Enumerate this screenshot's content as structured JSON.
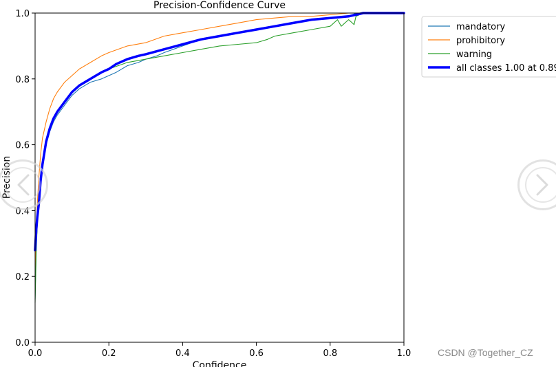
{
  "chart_data": {
    "type": "line",
    "title": "Precision-Confidence Curve",
    "xlabel": "Confidence",
    "ylabel": "Precision",
    "xlim": [
      0.0,
      1.0
    ],
    "ylim": [
      0.0,
      1.0
    ],
    "xticks": [
      "0.0",
      "0.2",
      "0.4",
      "0.6",
      "0.8",
      "1.0"
    ],
    "yticks": [
      "0.0",
      "0.2",
      "0.4",
      "0.6",
      "0.8",
      "1.0"
    ],
    "grid": false,
    "legend_position": "outside-right-top",
    "series": [
      {
        "name": "mandatory",
        "color": "#1f77b4",
        "line_width": "thin",
        "x": [
          0.0,
          0.003,
          0.006,
          0.01,
          0.015,
          0.02,
          0.03,
          0.04,
          0.05,
          0.06,
          0.08,
          0.1,
          0.12,
          0.15,
          0.18,
          0.2,
          0.22,
          0.25,
          0.28,
          0.3,
          0.33,
          0.35,
          0.4,
          0.45,
          0.5,
          0.55,
          0.6,
          0.65,
          0.7,
          0.75,
          0.8,
          0.83,
          0.85,
          0.87,
          0.9,
          1.0
        ],
        "y": [
          0.13,
          0.29,
          0.36,
          0.42,
          0.5,
          0.55,
          0.6,
          0.64,
          0.67,
          0.69,
          0.72,
          0.75,
          0.77,
          0.79,
          0.8,
          0.81,
          0.82,
          0.84,
          0.85,
          0.86,
          0.87,
          0.88,
          0.9,
          0.92,
          0.93,
          0.94,
          0.95,
          0.96,
          0.97,
          0.98,
          0.985,
          0.99,
          0.99,
          1.0,
          1.0,
          1.0
        ]
      },
      {
        "name": "prohibitory",
        "color": "#ff7f0e",
        "line_width": "thin",
        "x": [
          0.0,
          0.003,
          0.006,
          0.01,
          0.015,
          0.02,
          0.03,
          0.04,
          0.05,
          0.06,
          0.08,
          0.1,
          0.12,
          0.15,
          0.18,
          0.2,
          0.25,
          0.3,
          0.35,
          0.4,
          0.45,
          0.5,
          0.55,
          0.6,
          0.65,
          0.7,
          0.75,
          0.8,
          0.85,
          0.88,
          1.0
        ],
        "y": [
          0.2,
          0.33,
          0.42,
          0.5,
          0.57,
          0.62,
          0.67,
          0.71,
          0.74,
          0.76,
          0.79,
          0.81,
          0.83,
          0.85,
          0.87,
          0.88,
          0.9,
          0.91,
          0.93,
          0.94,
          0.95,
          0.96,
          0.97,
          0.98,
          0.985,
          0.99,
          0.99,
          0.995,
          1.0,
          1.0,
          1.0
        ]
      },
      {
        "name": "warning",
        "color": "#2ca02c",
        "line_width": "thin",
        "x": [
          0.0,
          0.003,
          0.006,
          0.01,
          0.015,
          0.02,
          0.03,
          0.04,
          0.05,
          0.06,
          0.08,
          0.1,
          0.12,
          0.15,
          0.2,
          0.25,
          0.3,
          0.35,
          0.4,
          0.45,
          0.5,
          0.55,
          0.6,
          0.63,
          0.65,
          0.7,
          0.75,
          0.8,
          0.82,
          0.83,
          0.85,
          0.86,
          0.865,
          0.87,
          0.89,
          1.0
        ],
        "y": [
          0.12,
          0.27,
          0.36,
          0.44,
          0.51,
          0.55,
          0.61,
          0.65,
          0.68,
          0.7,
          0.73,
          0.76,
          0.78,
          0.8,
          0.83,
          0.85,
          0.86,
          0.87,
          0.88,
          0.89,
          0.9,
          0.905,
          0.91,
          0.92,
          0.93,
          0.94,
          0.95,
          0.96,
          0.98,
          0.96,
          0.98,
          0.97,
          0.965,
          0.99,
          1.0,
          1.0
        ]
      },
      {
        "name": "all classes 1.00 at 0.89",
        "color": "#0000ff",
        "line_width": "thick",
        "x": [
          0.0,
          0.003,
          0.006,
          0.01,
          0.015,
          0.02,
          0.03,
          0.04,
          0.05,
          0.06,
          0.08,
          0.1,
          0.12,
          0.15,
          0.18,
          0.2,
          0.22,
          0.25,
          0.28,
          0.3,
          0.35,
          0.4,
          0.45,
          0.5,
          0.55,
          0.6,
          0.65,
          0.7,
          0.75,
          0.8,
          0.85,
          0.89,
          1.0
        ],
        "y": [
          0.28,
          0.34,
          0.38,
          0.42,
          0.49,
          0.54,
          0.61,
          0.65,
          0.68,
          0.7,
          0.73,
          0.76,
          0.78,
          0.8,
          0.82,
          0.83,
          0.845,
          0.86,
          0.87,
          0.875,
          0.89,
          0.905,
          0.92,
          0.93,
          0.94,
          0.95,
          0.96,
          0.97,
          0.98,
          0.985,
          0.99,
          1.0,
          1.0
        ]
      }
    ]
  },
  "watermark": "CSDN @Together_CZ",
  "icons": {
    "prev": "chevron-left-icon",
    "next": "chevron-right-icon"
  }
}
